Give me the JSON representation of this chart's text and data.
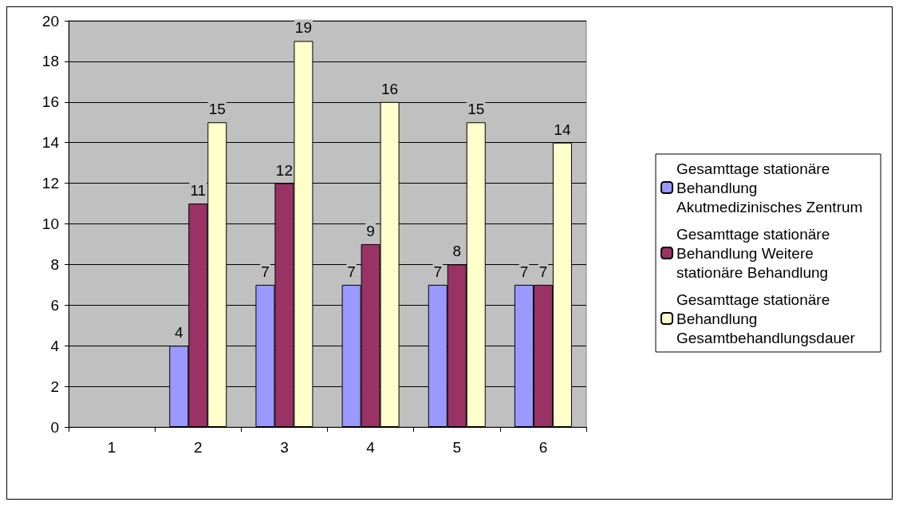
{
  "chart_data": {
    "type": "bar",
    "categories": [
      "1",
      "2",
      "3",
      "4",
      "5",
      "6"
    ],
    "series": [
      {
        "name": "Gesamttage stationäre Behandlung Akutmedizinisches Zentrum",
        "color": "#9999ff",
        "values": [
          null,
          4,
          7,
          7,
          7,
          7
        ]
      },
      {
        "name": "Gesamttage stationäre Behandlung Weitere stationäre Behandlung",
        "color": "#993366",
        "values": [
          null,
          11,
          12,
          9,
          8,
          7
        ]
      },
      {
        "name": "Gesamttage stationäre Behandlung Gesamtbehandlungsdauer",
        "color": "#ffffcc",
        "values": [
          null,
          15,
          19,
          16,
          15,
          14
        ]
      }
    ],
    "ylim": [
      0,
      20
    ],
    "yticks": [
      0,
      2,
      4,
      6,
      8,
      10,
      12,
      14,
      16,
      18,
      20
    ],
    "grid": "y",
    "legend": "right",
    "data_labels": true
  }
}
